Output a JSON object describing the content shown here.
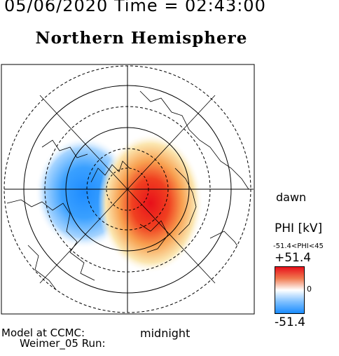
{
  "header": {
    "datetime": "05/06/2020 Time = 02:43:00",
    "title": "Northern Hemisphere"
  },
  "map": {
    "labels": {
      "dawn": "dawn",
      "midnight": "midnight"
    }
  },
  "colorbar": {
    "title": "PHI [kV]",
    "range_text": "-51.4<PHI<45",
    "max_label": "+51.4",
    "zero_label": "0",
    "min_label": "-51.4",
    "colors": {
      "high": "#e8101a",
      "mid": "#ffffff",
      "low": "#1a8cff"
    }
  },
  "footer": {
    "line1": "Model at CCMC:",
    "line2": "Weimer_05 Run:"
  }
}
